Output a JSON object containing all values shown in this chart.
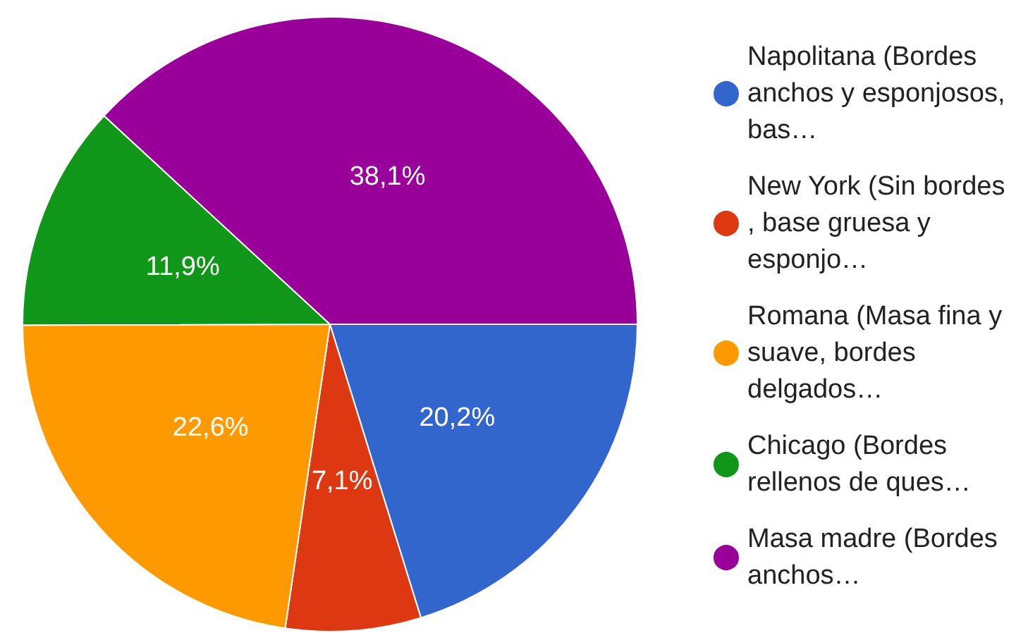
{
  "chart_data": {
    "type": "pie",
    "categories": [
      "Napolitana (Bordes anchos y esponjosos, bas…",
      "New York (Sin bordes, base gruesa y esponjo…",
      "Romana (Masa fina y suave, bordes delgados…",
      "Chicago (Bordes rellenos de ques…",
      "Masa madre (Bordes anchos…"
    ],
    "values": [
      20.2,
      7.1,
      22.6,
      11.9,
      38.1
    ],
    "value_labels": [
      "20,2%",
      "7,1%",
      "22,6%",
      "11,9%",
      "38,1%"
    ],
    "colors": [
      "#3366cc",
      "#dc3912",
      "#ff9900",
      "#109618",
      "#990099"
    ],
    "legend": "right"
  }
}
